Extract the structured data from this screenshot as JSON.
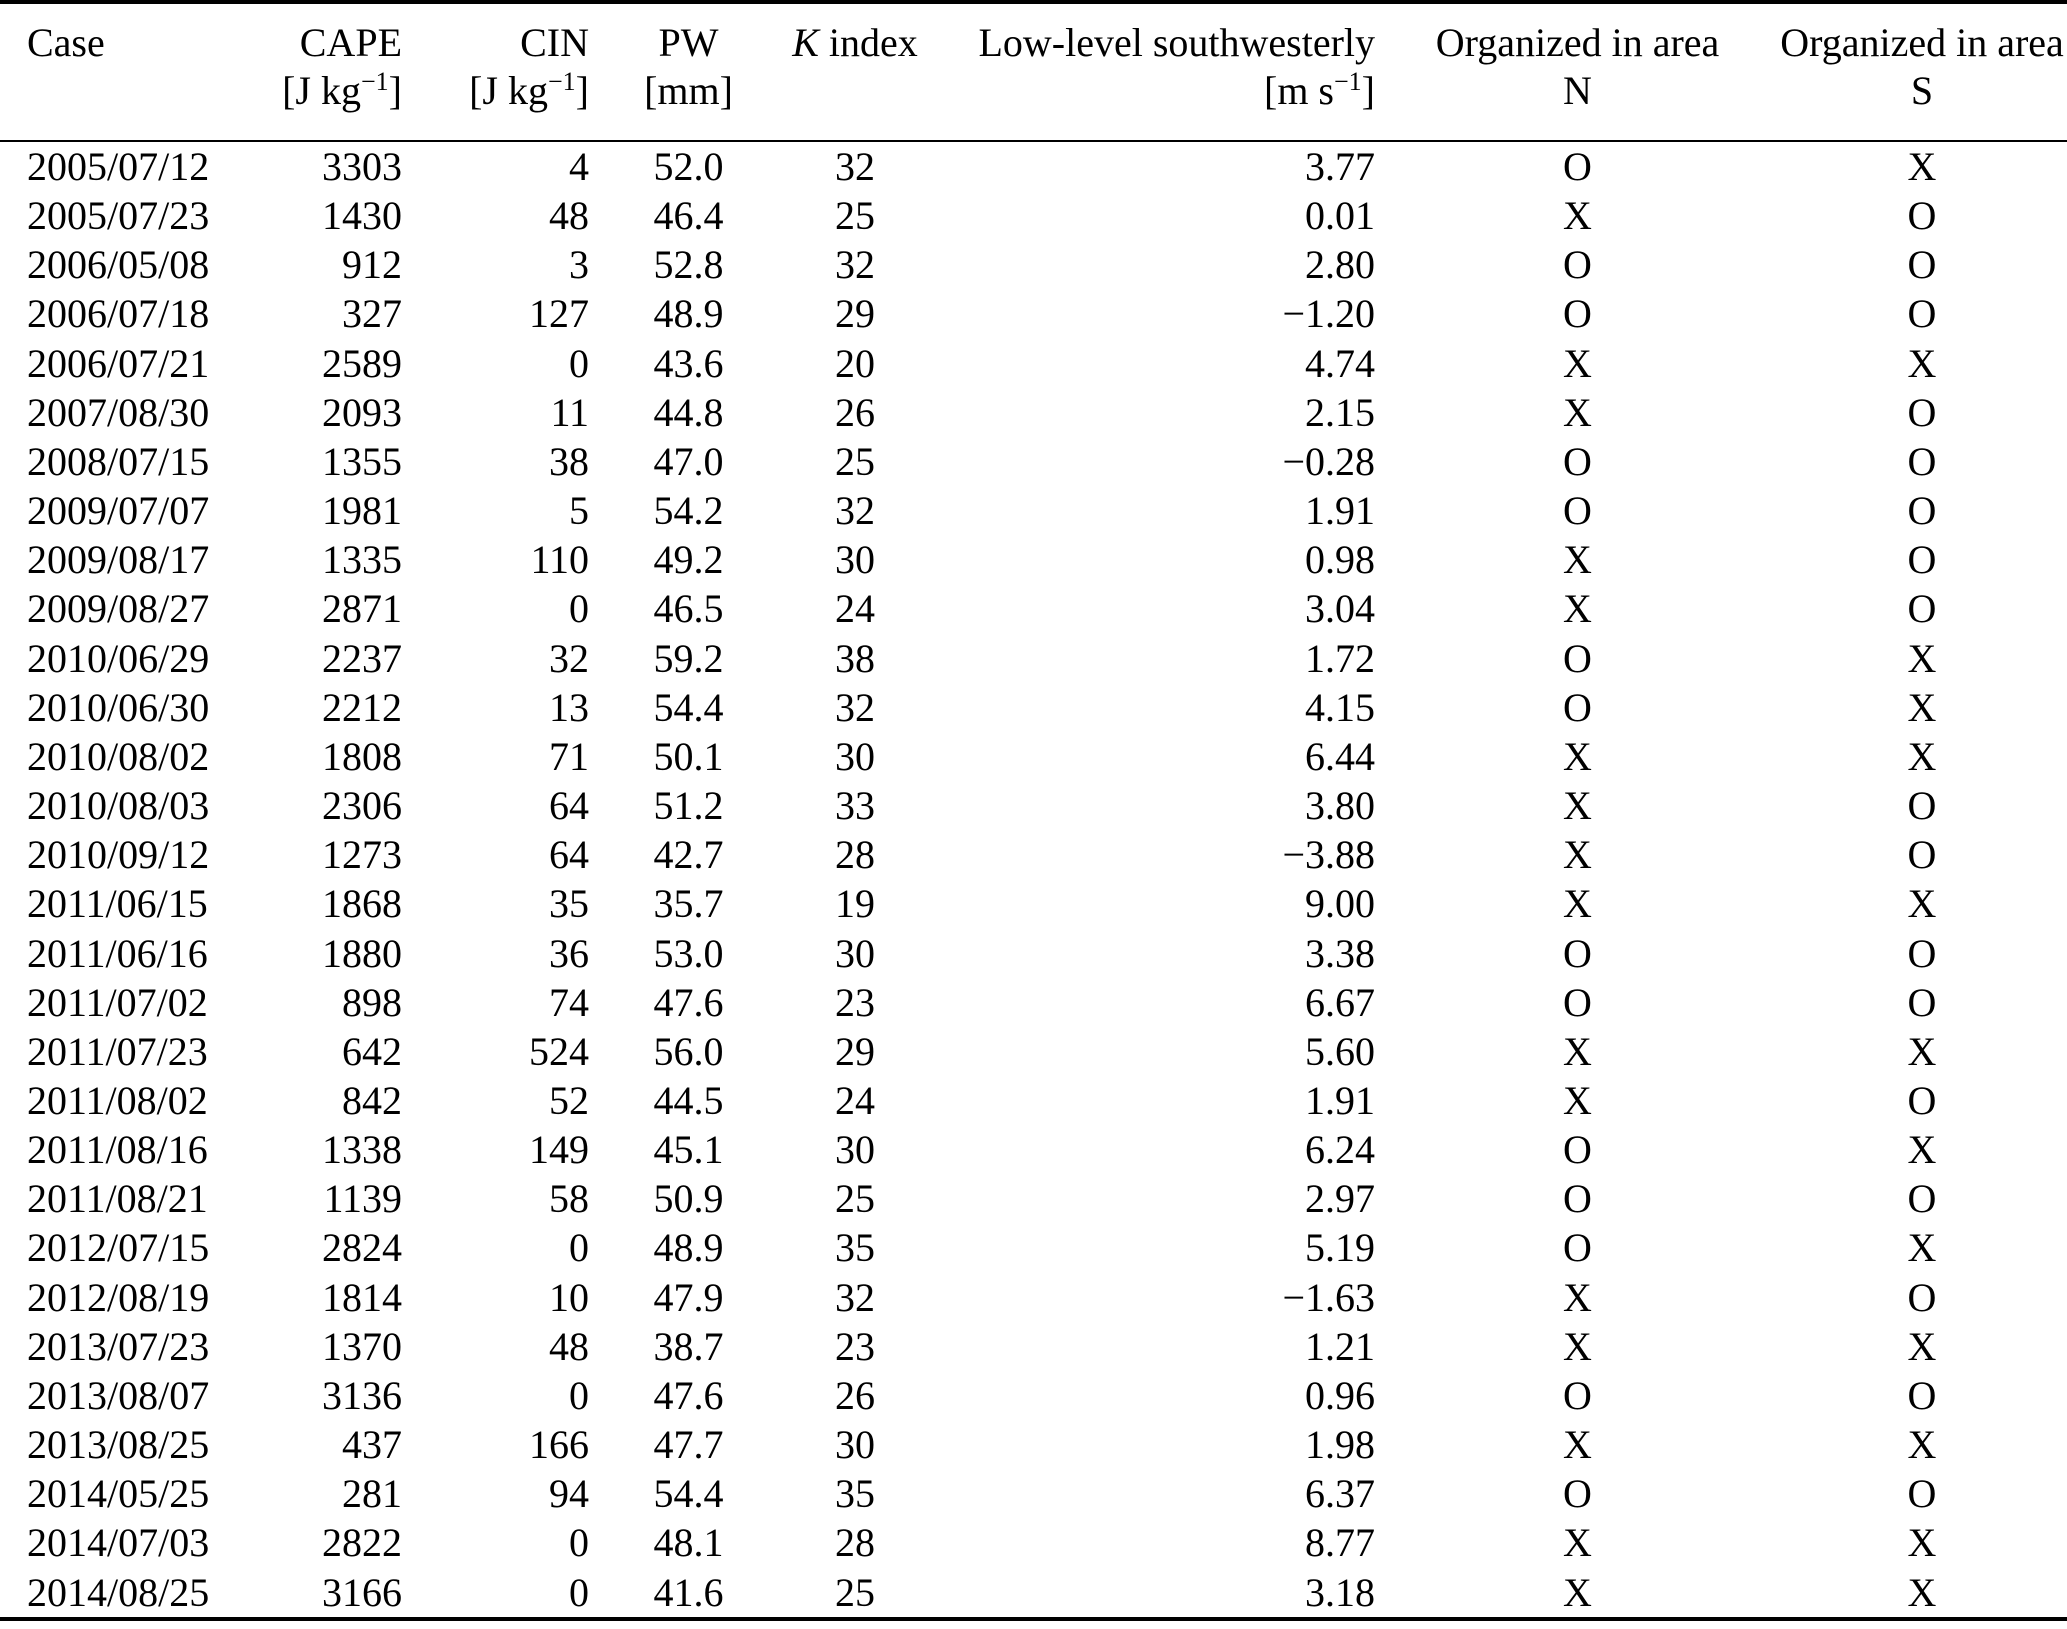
{
  "page": {
    "background": "#ffffff",
    "text_color": "#000000"
  },
  "table": {
    "header": {
      "case_label": "Case",
      "cape_label": "CAPE",
      "cape_unit_prefix": "[J kg",
      "cape_unit_sup": "−1",
      "cape_unit_suffix": "]",
      "cin_label": "CIN",
      "cin_unit_prefix": "[J kg",
      "cin_unit_sup": "−1",
      "cin_unit_suffix": "]",
      "pw_label": "PW",
      "pw_unit": "[mm]",
      "k_label_italic": "K",
      "k_label_rest": " index",
      "sw_label": "Low-level southwesterly",
      "sw_unit_prefix": "[m s",
      "sw_unit_sup": "−1",
      "sw_unit_suffix": "]",
      "organized_n_label": "Organized in area",
      "organized_n_sub": "N",
      "organized_s_label": "Organized in area",
      "organized_s_sub": "S"
    },
    "rows": [
      [
        "2005/07/12",
        "3303",
        "4",
        "52.0",
        "32",
        "3.77",
        "O",
        "X"
      ],
      [
        "2005/07/23",
        "1430",
        "48",
        "46.4",
        "25",
        "0.01",
        "X",
        "O"
      ],
      [
        "2006/05/08",
        "912",
        "3",
        "52.8",
        "32",
        "2.80",
        "O",
        "O"
      ],
      [
        "2006/07/18",
        "327",
        "127",
        "48.9",
        "29",
        "−1.20",
        "O",
        "O"
      ],
      [
        "2006/07/21",
        "2589",
        "0",
        "43.6",
        "20",
        "4.74",
        "X",
        "X"
      ],
      [
        "2007/08/30",
        "2093",
        "11",
        "44.8",
        "26",
        "2.15",
        "X",
        "O"
      ],
      [
        "2008/07/15",
        "1355",
        "38",
        "47.0",
        "25",
        "−0.28",
        "O",
        "O"
      ],
      [
        "2009/07/07",
        "1981",
        "5",
        "54.2",
        "32",
        "1.91",
        "O",
        "O"
      ],
      [
        "2009/08/17",
        "1335",
        "110",
        "49.2",
        "30",
        "0.98",
        "X",
        "O"
      ],
      [
        "2009/08/27",
        "2871",
        "0",
        "46.5",
        "24",
        "3.04",
        "X",
        "O"
      ],
      [
        "2010/06/29",
        "2237",
        "32",
        "59.2",
        "38",
        "1.72",
        "O",
        "X"
      ],
      [
        "2010/06/30",
        "2212",
        "13",
        "54.4",
        "32",
        "4.15",
        "O",
        "X"
      ],
      [
        "2010/08/02",
        "1808",
        "71",
        "50.1",
        "30",
        "6.44",
        "X",
        "X"
      ],
      [
        "2010/08/03",
        "2306",
        "64",
        "51.2",
        "33",
        "3.80",
        "X",
        "O"
      ],
      [
        "2010/09/12",
        "1273",
        "64",
        "42.7",
        "28",
        "−3.88",
        "X",
        "O"
      ],
      [
        "2011/06/15",
        "1868",
        "35",
        "35.7",
        "19",
        "9.00",
        "X",
        "X"
      ],
      [
        "2011/06/16",
        "1880",
        "36",
        "53.0",
        "30",
        "3.38",
        "O",
        "O"
      ],
      [
        "2011/07/02",
        "898",
        "74",
        "47.6",
        "23",
        "6.67",
        "O",
        "O"
      ],
      [
        "2011/07/23",
        "642",
        "524",
        "56.0",
        "29",
        "5.60",
        "X",
        "X"
      ],
      [
        "2011/08/02",
        "842",
        "52",
        "44.5",
        "24",
        "1.91",
        "X",
        "O"
      ],
      [
        "2011/08/16",
        "1338",
        "149",
        "45.1",
        "30",
        "6.24",
        "O",
        "X"
      ],
      [
        "2011/08/21",
        "1139",
        "58",
        "50.9",
        "25",
        "2.97",
        "O",
        "O"
      ],
      [
        "2012/07/15",
        "2824",
        "0",
        "48.9",
        "35",
        "5.19",
        "O",
        "X"
      ],
      [
        "2012/08/19",
        "1814",
        "10",
        "47.9",
        "32",
        "−1.63",
        "X",
        "O"
      ],
      [
        "2013/07/23",
        "1370",
        "48",
        "38.7",
        "23",
        "1.21",
        "X",
        "X"
      ],
      [
        "2013/08/07",
        "3136",
        "0",
        "47.6",
        "26",
        "0.96",
        "O",
        "O"
      ],
      [
        "2013/08/25",
        "437",
        "166",
        "47.7",
        "30",
        "1.98",
        "X",
        "X"
      ],
      [
        "2014/05/25",
        "281",
        "94",
        "54.4",
        "35",
        "6.37",
        "O",
        "O"
      ],
      [
        "2014/07/03",
        "2822",
        "0",
        "48.1",
        "28",
        "8.77",
        "X",
        "X"
      ],
      [
        "2014/08/25",
        "3166",
        "0",
        "41.6",
        "25",
        "3.18",
        "X",
        "X"
      ]
    ]
  }
}
